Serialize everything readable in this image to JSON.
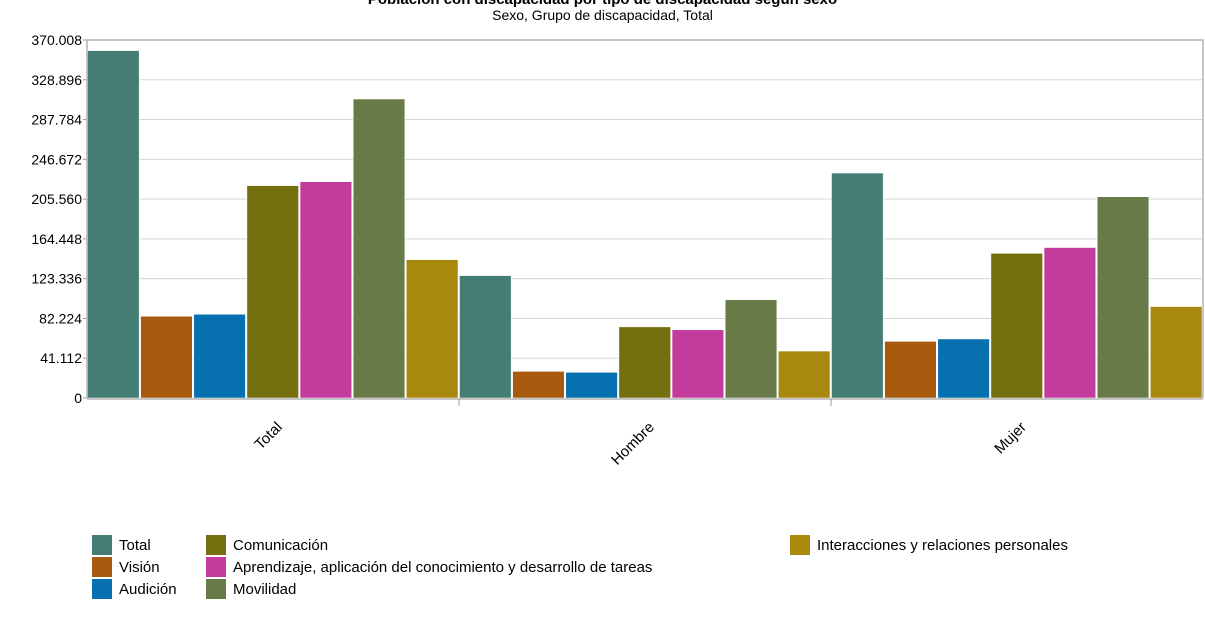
{
  "title": "Población con discapacidad por tipo de discapacidad según sexo",
  "subtitle": "Sexo, Grupo de discapacidad, Total",
  "colors": {
    "Total": "#457c73",
    "Visión": "#a85a0e",
    "Audición": "#0770b0",
    "Comunicación": "#746f0f",
    "Aprendizaje, aplicación del conocimiento y desarrollo de tareas": "#c43b9e",
    "Movilidad": "#687a47",
    "Interacciones y relaciones personales": "#a8880d"
  },
  "chart_data": {
    "type": "bar",
    "title": "Población con discapacidad por tipo de discapacidad según sexo",
    "subtitle": "Sexo, Grupo de discapacidad, Total",
    "xlabel": "",
    "ylabel": "",
    "ylim": [
      0,
      370008
    ],
    "yticks": [
      "0",
      "41.112",
      "82.224",
      "123.336",
      "164.448",
      "205.560",
      "246.672",
      "287.784",
      "328.896",
      "370.008"
    ],
    "ytick_values": [
      0,
      41112,
      82224,
      123336,
      164448,
      205560,
      246672,
      287784,
      328896,
      370008
    ],
    "grid": true,
    "legend_position": "bottom",
    "categories": [
      "Total",
      "Hombre",
      "Mujer"
    ],
    "series": [
      {
        "name": "Total",
        "values": [
          359000,
          126500,
          232500
        ]
      },
      {
        "name": "Visión",
        "values": [
          84500,
          27500,
          58500
        ]
      },
      {
        "name": "Audición",
        "values": [
          86500,
          26500,
          61000
        ]
      },
      {
        "name": "Comunicación",
        "values": [
          219500,
          73500,
          149500
        ]
      },
      {
        "name": "Aprendizaje, aplicación del conocimiento y desarrollo de tareas",
        "values": [
          223500,
          70500,
          155500
        ]
      },
      {
        "name": "Movilidad",
        "values": [
          309000,
          101500,
          208000
        ]
      },
      {
        "name": "Interacciones y relaciones personales",
        "values": [
          143000,
          48500,
          94500
        ]
      }
    ]
  }
}
